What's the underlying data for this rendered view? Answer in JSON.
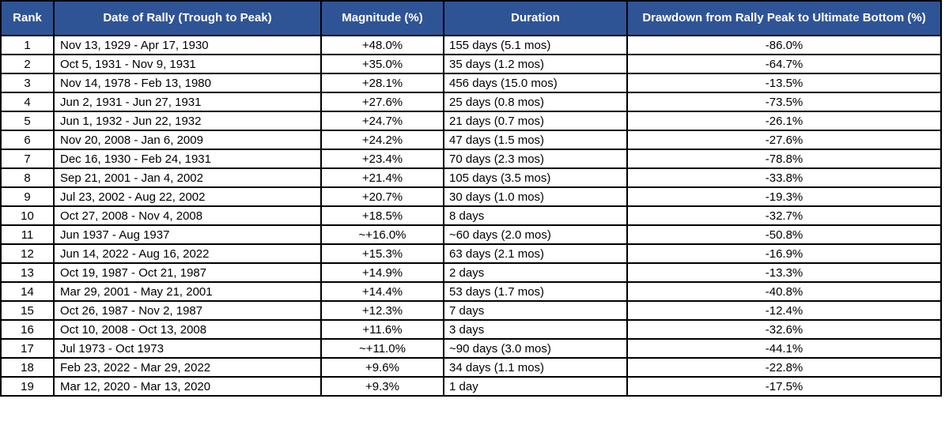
{
  "colors": {
    "header_bg": "#2f5496",
    "header_text": "#ffffff",
    "border": "#000000",
    "row_bg": "#ffffff",
    "body_text": "#000000"
  },
  "chart_data": {
    "type": "table",
    "headers": [
      "Rank",
      "Date of Rally (Trough to Peak)",
      "Magnitude (%)",
      "Duration",
      "Drawdown from Rally Peak to Ultimate Bottom (%)"
    ],
    "column_keys": [
      "rank",
      "date",
      "magnitude",
      "duration",
      "drawdown"
    ],
    "rows": [
      [
        "1",
        "Nov 13, 1929 - Apr 17, 1930",
        "+48.0%",
        "155 days (5.1 mos)",
        "-86.0%"
      ],
      [
        "2",
        "Oct 5, 1931 - Nov 9, 1931",
        "+35.0%",
        "35 days (1.2 mos)",
        "-64.7%"
      ],
      [
        "3",
        "Nov 14, 1978 - Feb 13, 1980",
        "+28.1%",
        "456 days (15.0 mos)",
        "-13.5%"
      ],
      [
        "4",
        "Jun 2, 1931 - Jun 27, 1931",
        "+27.6%",
        "25 days (0.8 mos)",
        "-73.5%"
      ],
      [
        "5",
        "Jun 1, 1932 - Jun 22, 1932",
        "+24.7%",
        "21 days (0.7 mos)",
        "-26.1%"
      ],
      [
        "6",
        "Nov 20, 2008 - Jan 6, 2009",
        "+24.2%",
        "47 days (1.5 mos)",
        "-27.6%"
      ],
      [
        "7",
        "Dec 16, 1930 - Feb 24, 1931",
        "+23.4%",
        "70 days (2.3 mos)",
        "-78.8%"
      ],
      [
        "8",
        "Sep 21, 2001 - Jan 4, 2002",
        "+21.4%",
        "105 days (3.5 mos)",
        "-33.8%"
      ],
      [
        "9",
        "Jul 23, 2002 - Aug 22, 2002",
        "+20.7%",
        "30 days (1.0 mos)",
        "-19.3%"
      ],
      [
        "10",
        "Oct 27, 2008 - Nov 4, 2008",
        "+18.5%",
        "8 days",
        "-32.7%"
      ],
      [
        "11",
        "Jun 1937 - Aug 1937",
        "~+16.0%",
        "~60 days (2.0 mos)",
        "-50.8%"
      ],
      [
        "12",
        "Jun 14, 2022 - Aug 16, 2022",
        "+15.3%",
        "63 days (2.1 mos)",
        "-16.9%"
      ],
      [
        "13",
        "Oct 19, 1987 - Oct 21, 1987",
        "+14.9%",
        "2 days",
        "-13.3%"
      ],
      [
        "14",
        "Mar 29, 2001 - May 21, 2001",
        "+14.4%",
        "53 days (1.7 mos)",
        "-40.8%"
      ],
      [
        "15",
        "Oct 26, 1987 - Nov 2, 1987",
        "+12.3%",
        "7 days",
        "-12.4%"
      ],
      [
        "16",
        "Oct 10, 2008 - Oct 13, 2008",
        "+11.6%",
        "3 days",
        "-32.6%"
      ],
      [
        "17",
        "Jul 1973 - Oct 1973",
        "~+11.0%",
        "~90 days (3.0 mos)",
        "-44.1%"
      ],
      [
        "18",
        "Feb 23, 2022 - Mar 29, 2022",
        "+9.6%",
        "34 days (1.1 mos)",
        "-22.8%"
      ],
      [
        "19",
        "Mar 12, 2020 - Mar 13, 2020",
        "+9.3%",
        "1 day",
        "-17.5%"
      ]
    ]
  }
}
